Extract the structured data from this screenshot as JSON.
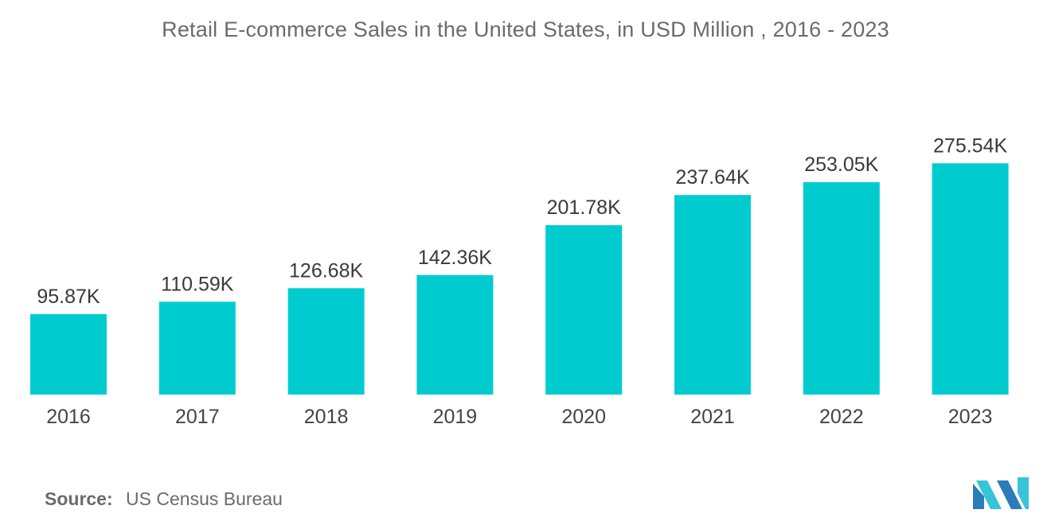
{
  "chart_data": {
    "type": "bar",
    "title": "Retail E-commerce Sales in the United States, in USD Million , 2016 - 2023",
    "categories": [
      "2016",
      "2017",
      "2018",
      "2019",
      "2020",
      "2021",
      "2022",
      "2023"
    ],
    "values": [
      95.87,
      110.59,
      126.68,
      142.36,
      201.78,
      237.64,
      253.05,
      275.54
    ],
    "value_labels": [
      "95.87K",
      "110.59K",
      "126.68K",
      "142.36K",
      "201.78K",
      "237.64K",
      "253.05K",
      "275.54K"
    ],
    "value_unit": "thousand USD Million",
    "xlabel": "",
    "ylabel": "",
    "ylim": [
      0,
      290
    ],
    "grid": false,
    "legend": "none",
    "bar_color": "#00ccd0"
  },
  "source": {
    "label": "Source:",
    "text": "US Census Bureau"
  },
  "logo": {
    "icon": "mordor-intelligence-logo-icon",
    "colors": [
      "#2b7cb8",
      "#38c4d8"
    ]
  }
}
